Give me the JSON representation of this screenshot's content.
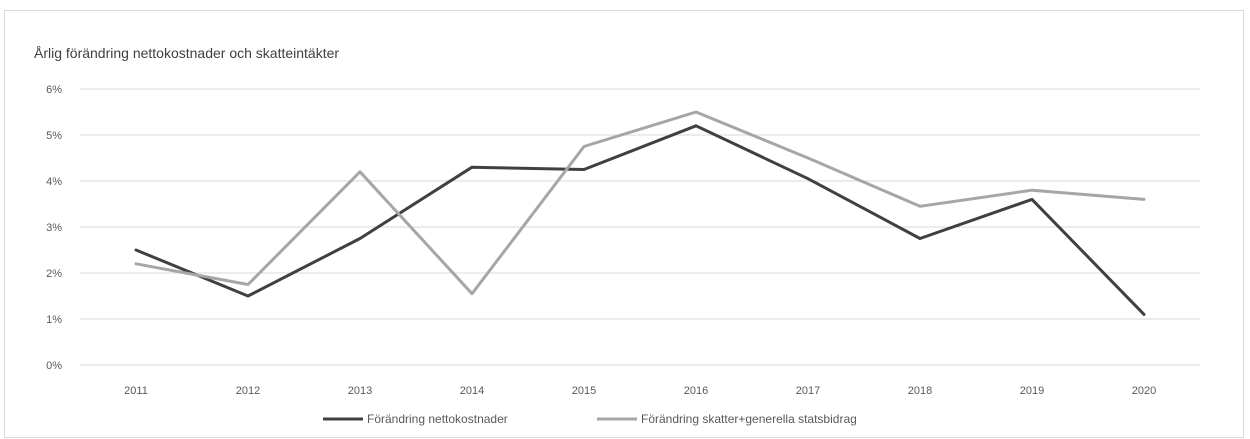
{
  "chart_data": {
    "type": "line",
    "title": "Årlig förändring nettokostnader och skatteintäkter",
    "x": [
      "2011",
      "2012",
      "2013",
      "2014",
      "2015",
      "2016",
      "2017",
      "2018",
      "2019",
      "2020"
    ],
    "yticks": [
      "0%",
      "1%",
      "2%",
      "3%",
      "4%",
      "5%",
      "6%"
    ],
    "ylim": [
      0,
      6
    ],
    "grid": true,
    "legend_position": "bottom",
    "series": [
      {
        "name": "Förändring nettokostnader",
        "color": "#404040",
        "values": [
          2.5,
          1.5,
          2.75,
          4.3,
          4.25,
          5.2,
          4.05,
          2.75,
          3.6,
          1.1
        ]
      },
      {
        "name": "Förändring skatter+generella statsbidrag",
        "color": "#a6a6a6",
        "values": [
          2.2,
          1.75,
          4.2,
          1.55,
          4.75,
          5.5,
          4.5,
          3.45,
          3.8,
          3.6
        ]
      }
    ]
  }
}
